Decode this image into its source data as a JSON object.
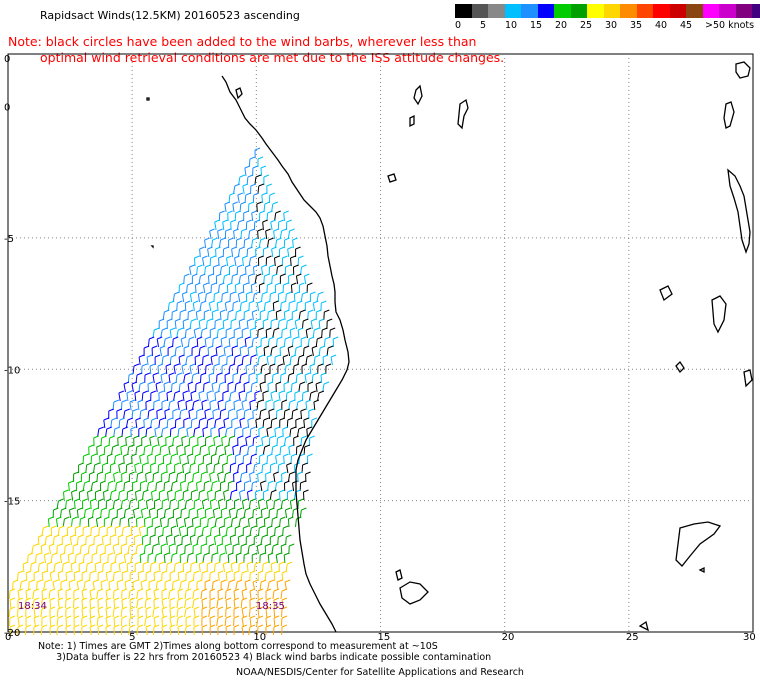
{
  "header": {
    "title": "Rapidsact Winds(12.5KM) 20160523 ascending"
  },
  "note": {
    "line1": "Note: black circles have been added to the wind barbs, wherever less than",
    "line2": "optimal wind retrieval conditions are met due to the ISS attitude changes."
  },
  "legend": {
    "colors": [
      "#000000",
      "#555555",
      "#888888",
      "#00bfff",
      "#1e90ff",
      "#0000ff",
      "#00cc00",
      "#00a000",
      "#ffff00",
      "#ffd700",
      "#ff8c00",
      "#ff4500",
      "#ff0000",
      "#cc0000",
      "#8b4513",
      "#ff00ff",
      "#cc00cc",
      "#800080",
      "#400080"
    ],
    "labels": [
      "0",
      "5",
      "10",
      "15",
      "20",
      "25",
      "30",
      "35",
      "40",
      "45",
      ">50 knots"
    ]
  },
  "map": {
    "x_ticks": [
      "0",
      "5",
      "10",
      "15",
      "20",
      "25",
      "30"
    ],
    "y_ticks": [
      "0",
      "-5",
      "-10",
      "-15",
      "-20"
    ],
    "time_left": "18:34",
    "time_right": "18:35",
    "land_color": "#000000",
    "grid_color": "#888888"
  },
  "footer": {
    "line1": "Note: 1) Times are GMT 2)Times along bottom correspond to measurement at ~10S",
    "line2": "      3)Data buffer is 22 hrs from 20160523 4) Black wind barbs indicate possible contamination"
  },
  "credit": "NOAA/NESDIS/Center for Satellite Applications and Research"
}
